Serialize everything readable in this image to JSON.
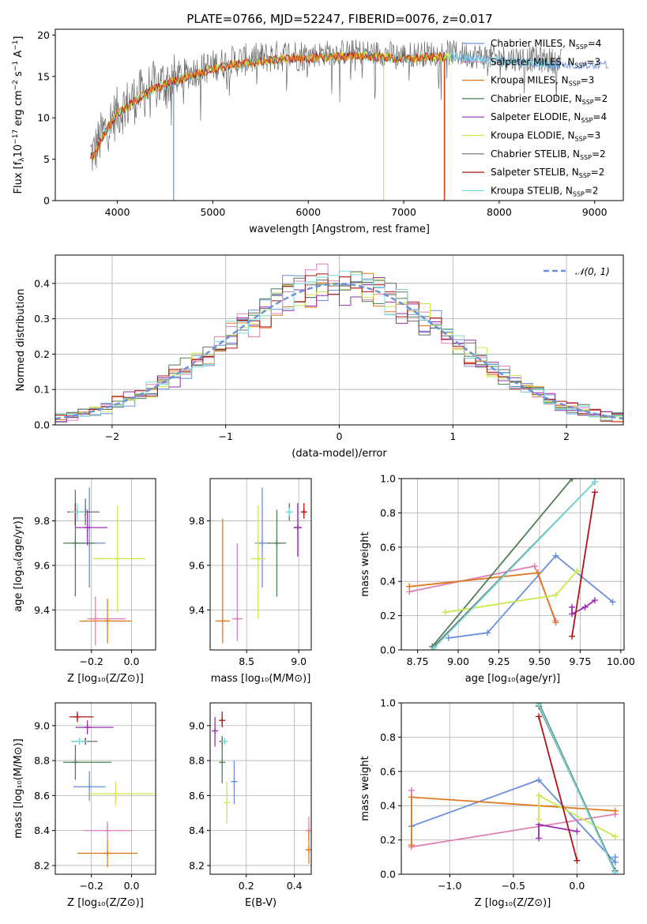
{
  "colors": {
    "Chabrier MILES": "#6a8fdc",
    "Salpeter MILES": "#e07fb3",
    "Kroupa MILES": "#e07a1f",
    "Chabrier ELODIE": "#4f7f55",
    "Salpeter ELODIE": "#9a2fb0",
    "Kroupa ELODIE": "#c9ea4e",
    "Chabrier STELIB": "#6b6b6b",
    "Salpeter STELIB": "#b01414",
    "Kroupa STELIB": "#77dada"
  },
  "chart_data": [
    {
      "id": "spectrum",
      "type": "line",
      "title": "PLATE=0766, MJD=52247, FIBERID=0076, z=0.017",
      "xlabel": "wavelength [Angstrom, rest frame]",
      "ylabel": "Flux [f_λ 10^{-17} erg cm^{-2} s^{-1} A^{-1}]",
      "xlim": [
        3350,
        9300
      ],
      "ylim": [
        0,
        20.7
      ],
      "xticks": [
        4000,
        5000,
        6000,
        7000,
        8000,
        9000
      ],
      "yticks": [
        0,
        5,
        10,
        15,
        20
      ],
      "grid": false,
      "legend_position": "right",
      "legend": [
        {
          "name": "Chabrier MILES",
          "nssp": "4"
        },
        {
          "name": "Salpeter MILES",
          "nssp": "3"
        },
        {
          "name": "Kroupa MILES",
          "nssp": "3"
        },
        {
          "name": "Chabrier ELODIE",
          "nssp": "2"
        },
        {
          "name": "Salpeter ELODIE",
          "nssp": "4"
        },
        {
          "name": "Kroupa ELODIE",
          "nssp": "3"
        },
        {
          "name": "Chabrier STELIB",
          "nssp": "2"
        },
        {
          "name": "Salpeter STELIB",
          "nssp": "2"
        },
        {
          "name": "Kroupa STELIB",
          "nssp": "2"
        }
      ],
      "data_continuum": {
        "x": [
          3750,
          3850,
          4000,
          4200,
          4400,
          4600,
          4800,
          5000,
          5200,
          5500,
          5800,
          6000,
          6200,
          6500,
          6800,
          7000,
          7200,
          7500,
          7800,
          8000,
          8300,
          8600
        ],
        "y": [
          6.0,
          8.5,
          11.0,
          12.8,
          14.2,
          15.0,
          15.8,
          16.5,
          17.0,
          17.4,
          17.8,
          17.7,
          18.0,
          18.1,
          17.9,
          17.7,
          17.9,
          18.0,
          17.6,
          17.4,
          17.3,
          17.0
        ]
      },
      "model_lines": [
        {
          "series": "Chabrier MILES",
          "x0": 3750,
          "x1": 9300
        },
        {
          "series": "Kroupa STELIB",
          "x0": 3720,
          "x1": 9300
        },
        {
          "series": "Kroupa ELODIE",
          "x0": 3720,
          "x1": 7500
        },
        {
          "series": "Salpeter STELIB",
          "x0": 3720,
          "x1": 7430
        },
        {
          "series": "Kroupa MILES",
          "x0": 3720,
          "x1": 7430
        }
      ],
      "sharp_drops": [
        {
          "series": "Chabrier MILES",
          "x": 4590
        },
        {
          "series": "Kroupa ELODIE",
          "x": 6790
        },
        {
          "series": "Salpeter STELIB",
          "x": 7425
        },
        {
          "series": "Kroupa MILES",
          "x": 7430
        }
      ]
    },
    {
      "id": "residuals",
      "type": "histogram",
      "xlabel": "(data-model)/error",
      "ylabel": "Normed distribution",
      "xlim": [
        -2.5,
        2.5
      ],
      "ylim": [
        0,
        0.48
      ],
      "xticks": [
        -2,
        -1,
        0,
        1,
        2
      ],
      "yticks": [
        0.0,
        0.1,
        0.2,
        0.3,
        0.4
      ],
      "grid": true,
      "legend_position": "top-right",
      "legend": [
        "𝒩(0, 1)"
      ],
      "normal_curve": {
        "mu": 0,
        "sigma": 1,
        "color": "#6a8fdc",
        "dash": true
      },
      "bin_width": 0.1
    },
    {
      "id": "age_vs_Z",
      "type": "scatter",
      "xlabel": "Z [log₁₀(Z/Z⊙)]",
      "ylabel": "age [log₁₀(age/yr)]",
      "xlim": [
        -0.38,
        0.12
      ],
      "ylim": [
        9.22,
        9.99
      ],
      "xticks": [
        -0.2,
        0.0
      ],
      "yticks": [
        9.4,
        9.6,
        9.8
      ],
      "grid": true,
      "points": [
        {
          "series": "Chabrier MILES",
          "x": -0.21,
          "y": 9.7,
          "xerr": [
            0.08,
            0.08
          ],
          "yerr": [
            0.2,
            0.25
          ]
        },
        {
          "series": "Salpeter MILES",
          "x": -0.18,
          "y": 9.36,
          "xerr": [
            0.04,
            0.15
          ],
          "yerr": [
            0.12,
            0.1
          ]
        },
        {
          "series": "Kroupa MILES",
          "x": -0.12,
          "y": 9.35,
          "xerr": [
            0.14,
            0.12
          ],
          "yerr": [
            0.1,
            0.1
          ]
        },
        {
          "series": "Chabrier ELODIE",
          "x": -0.28,
          "y": 9.7,
          "xerr": [
            0.06,
            0.1
          ],
          "yerr": [
            0.24,
            0.24
          ]
        },
        {
          "series": "Salpeter ELODIE",
          "x": -0.22,
          "y": 9.77,
          "xerr": [
            0.06,
            0.1
          ],
          "yerr": [
            0.08,
            0.08
          ]
        },
        {
          "series": "Kroupa ELODIE",
          "x": -0.07,
          "y": 9.63,
          "xerr": [
            0.12,
            0.14
          ],
          "yerr": [
            0.24,
            0.24
          ]
        },
        {
          "series": "Chabrier STELIB",
          "x": -0.23,
          "y": 9.84,
          "xerr": [
            0.07,
            0.07
          ],
          "yerr": [
            0.06,
            0.06
          ]
        },
        {
          "series": "Salpeter STELIB",
          "x": -0.28,
          "y": 9.84,
          "xerr": [
            0.04,
            0.04
          ],
          "yerr": [
            0.06,
            0.04
          ]
        },
        {
          "series": "Kroupa STELIB",
          "x": -0.27,
          "y": 9.84,
          "xerr": [
            0.04,
            0.04
          ],
          "yerr": [
            0.04,
            0.04
          ]
        }
      ]
    },
    {
      "id": "age_vs_mass",
      "type": "scatter",
      "xlabel": "mass [log₁₀(M/M⊙)]",
      "ylabel": "",
      "xlim": [
        8.15,
        9.12
      ],
      "ylim": [
        9.22,
        9.99
      ],
      "xticks": [
        8.5,
        9.0
      ],
      "yticks": [
        9.4,
        9.6,
        9.8
      ],
      "grid": true,
      "points": [
        {
          "series": "Chabrier MILES",
          "x": 8.65,
          "y": 9.7,
          "xerr": [
            0.07,
            0.07
          ],
          "yerr": [
            0.2,
            0.25
          ]
        },
        {
          "series": "Salpeter MILES",
          "x": 8.41,
          "y": 9.36,
          "xerr": [
            0.05,
            0.05
          ],
          "yerr": [
            0.1,
            0.34
          ]
        },
        {
          "series": "Kroupa MILES",
          "x": 8.27,
          "y": 9.35,
          "xerr": [
            0.07,
            0.07
          ],
          "yerr": [
            0.1,
            0.46
          ]
        },
        {
          "series": "Chabrier ELODIE",
          "x": 8.79,
          "y": 9.7,
          "xerr": [
            0.09,
            0.09
          ],
          "yerr": [
            0.24,
            0.15
          ]
        },
        {
          "series": "Salpeter ELODIE",
          "x": 8.99,
          "y": 9.77,
          "xerr": [
            0.04,
            0.04
          ],
          "yerr": [
            0.13,
            0.11
          ]
        },
        {
          "series": "Kroupa ELODIE",
          "x": 8.61,
          "y": 9.63,
          "xerr": [
            0.07,
            0.07
          ],
          "yerr": [
            0.27,
            0.24
          ]
        },
        {
          "series": "Chabrier STELIB",
          "x": 8.91,
          "y": 9.84,
          "xerr": [
            0.02,
            0.02
          ],
          "yerr": [
            0.04,
            0.04
          ]
        },
        {
          "series": "Salpeter STELIB",
          "x": 9.05,
          "y": 9.84,
          "xerr": [
            0.02,
            0.02
          ],
          "yerr": [
            0.03,
            0.04
          ]
        },
        {
          "series": "Kroupa STELIB",
          "x": 8.91,
          "y": 9.84,
          "xerr": [
            0.02,
            0.02
          ],
          "yerr": [
            0.02,
            0.02
          ]
        }
      ]
    },
    {
      "id": "weight_vs_age",
      "type": "line",
      "xlabel": "age [log₁₀(age/yr)]",
      "ylabel": "mass weight",
      "xlim": [
        8.65,
        10.02
      ],
      "ylim": [
        0,
        1.0
      ],
      "xticks": [
        8.75,
        9.0,
        9.25,
        9.5,
        9.75,
        10.0
      ],
      "yticks": [
        0.0,
        0.2,
        0.4,
        0.6,
        0.8,
        1.0
      ],
      "grid": true,
      "series": [
        {
          "name": "Chabrier MILES",
          "x": [
            8.94,
            9.18,
            9.6,
            9.95
          ],
          "y": [
            0.07,
            0.1,
            0.55,
            0.28
          ]
        },
        {
          "name": "Salpeter MILES",
          "x": [
            8.7,
            9.47,
            9.6
          ],
          "y": [
            0.34,
            0.49,
            0.17
          ]
        },
        {
          "name": "Kroupa MILES",
          "x": [
            8.7,
            9.49,
            9.6
          ],
          "y": [
            0.37,
            0.45,
            0.16
          ]
        },
        {
          "name": "Chabrier ELODIE",
          "x": [
            8.84,
            9.7
          ],
          "y": [
            0.02,
            1.0
          ]
        },
        {
          "name": "Salpeter ELODIE",
          "x": [
            9.7,
            9.7,
            9.78,
            9.84
          ],
          "y": [
            0.25,
            0.21,
            0.25,
            0.29
          ]
        },
        {
          "name": "Kroupa ELODIE",
          "x": [
            8.92,
            9.6,
            9.73
          ],
          "y": [
            0.22,
            0.32,
            0.46
          ]
        },
        {
          "name": "Chabrier STELIB",
          "x": [
            8.85,
            9.84
          ],
          "y": [
            0.02,
            0.98
          ]
        },
        {
          "name": "Salpeter STELIB",
          "x": [
            9.7,
            9.84
          ],
          "y": [
            0.08,
            0.92
          ]
        },
        {
          "name": "Kroupa STELIB",
          "x": [
            8.85,
            9.84
          ],
          "y": [
            0.01,
            0.98
          ]
        }
      ]
    },
    {
      "id": "mass_vs_Z",
      "type": "scatter",
      "xlabel": "Z [log₁₀(Z/Z⊙)]",
      "ylabel": "mass [log₁₀(M/M⊙)]",
      "xlim": [
        -0.38,
        0.12
      ],
      "ylim": [
        8.15,
        9.13
      ],
      "xticks": [
        -0.2,
        0.0
      ],
      "yticks": [
        8.2,
        8.4,
        8.6,
        8.8,
        9.0
      ],
      "grid": true,
      "points": [
        {
          "series": "Chabrier MILES",
          "x": -0.21,
          "y": 8.65,
          "xerr": [
            0.08,
            0.08
          ],
          "yerr": [
            0.08,
            0.09
          ]
        },
        {
          "series": "Salpeter MILES",
          "x": -0.12,
          "y": 8.4,
          "xerr": [
            0.12,
            0.12
          ],
          "yerr": [
            0.05,
            0.05
          ]
        },
        {
          "series": "Kroupa MILES",
          "x": -0.12,
          "y": 8.27,
          "xerr": [
            0.15,
            0.15
          ],
          "yerr": [
            0.08,
            0.08
          ]
        },
        {
          "series": "Chabrier ELODIE",
          "x": -0.28,
          "y": 8.79,
          "xerr": [
            0.06,
            0.18
          ],
          "yerr": [
            0.1,
            0.1
          ]
        },
        {
          "series": "Salpeter ELODIE",
          "x": -0.22,
          "y": 8.99,
          "xerr": [
            0.06,
            0.13
          ],
          "yerr": [
            0.04,
            0.04
          ]
        },
        {
          "series": "Kroupa ELODIE",
          "x": -0.08,
          "y": 8.61,
          "xerr": [
            0.14,
            0.19
          ],
          "yerr": [
            0.07,
            0.07
          ]
        },
        {
          "series": "Chabrier STELIB",
          "x": -0.23,
          "y": 8.91,
          "xerr": [
            0.07,
            0.06
          ],
          "yerr": [
            0.02,
            0.02
          ]
        },
        {
          "series": "Salpeter STELIB",
          "x": -0.27,
          "y": 9.05,
          "xerr": [
            0.04,
            0.08
          ],
          "yerr": [
            0.03,
            0.03
          ]
        },
        {
          "series": "Kroupa STELIB",
          "x": -0.26,
          "y": 8.91,
          "xerr": [
            0.04,
            0.04
          ],
          "yerr": [
            0.02,
            0.02
          ]
        }
      ]
    },
    {
      "id": "mass_vs_EBV",
      "type": "scatter",
      "xlabel": "E(B-V)",
      "ylabel": "",
      "xlim": [
        0.05,
        0.47
      ],
      "ylim": [
        8.15,
        9.13
      ],
      "xticks": [
        0.2,
        0.4
      ],
      "yticks": [
        8.2,
        8.4,
        8.6,
        8.8,
        9.0
      ],
      "grid": true,
      "points": [
        {
          "series": "Chabrier MILES",
          "x": 0.15,
          "y": 8.68,
          "xerr": [
            0,
            0
          ],
          "yerr": [
            0.13,
            0.12
          ]
        },
        {
          "series": "Salpeter MILES",
          "x": 0.46,
          "y": 8.4,
          "xerr": [
            0,
            0
          ],
          "yerr": [
            0.05,
            0.08
          ]
        },
        {
          "series": "Kroupa MILES",
          "x": 0.46,
          "y": 8.29,
          "xerr": [
            0,
            0
          ],
          "yerr": [
            0.08,
            0.11
          ]
        },
        {
          "series": "Chabrier ELODIE",
          "x": 0.1,
          "y": 8.79,
          "xerr": [
            0,
            0
          ],
          "yerr": [
            0.12,
            0.12
          ]
        },
        {
          "series": "Salpeter ELODIE",
          "x": 0.07,
          "y": 8.97,
          "xerr": [
            0,
            0
          ],
          "yerr": [
            0.09,
            0.08
          ]
        },
        {
          "series": "Kroupa ELODIE",
          "x": 0.12,
          "y": 8.56,
          "xerr": [
            0,
            0
          ],
          "yerr": [
            0.12,
            0.12
          ]
        },
        {
          "series": "Chabrier STELIB",
          "x": 0.1,
          "y": 8.91,
          "xerr": [
            0,
            0
          ],
          "yerr": [
            0.03,
            0.03
          ]
        },
        {
          "series": "Salpeter STELIB",
          "x": 0.1,
          "y": 9.03,
          "xerr": [
            0,
            0
          ],
          "yerr": [
            0.04,
            0.05
          ]
        },
        {
          "series": "Kroupa STELIB",
          "x": 0.11,
          "y": 8.91,
          "xerr": [
            0,
            0
          ],
          "yerr": [
            0.02,
            0.02
          ]
        }
      ]
    },
    {
      "id": "weight_vs_Z",
      "type": "line",
      "xlabel": "Z [log₁₀(Z/Z⊙)]",
      "ylabel": "mass weight",
      "xlim": [
        -1.38,
        0.37
      ],
      "ylim": [
        0,
        1.0
      ],
      "xticks": [
        -1.0,
        -0.5,
        0.0
      ],
      "yticks": [
        0.0,
        0.2,
        0.4,
        0.6,
        0.8,
        1.0
      ],
      "grid": true,
      "series": [
        {
          "name": "Chabrier MILES",
          "x": [
            -1.3,
            -0.3,
            0.3,
            0.3
          ],
          "y": [
            0.28,
            0.55,
            0.07,
            0.1
          ]
        },
        {
          "name": "Salpeter MILES",
          "x": [
            -1.3,
            -1.3,
            0.3
          ],
          "y": [
            0.49,
            0.16,
            0.35
          ]
        },
        {
          "name": "Kroupa MILES",
          "x": [
            -1.3,
            -1.3,
            0.3
          ],
          "y": [
            0.17,
            0.45,
            0.37
          ]
        },
        {
          "name": "Chabrier ELODIE",
          "x": [
            -0.3,
            0.3
          ],
          "y": [
            1.0,
            0.02
          ]
        },
        {
          "name": "Salpeter ELODIE",
          "x": [
            -0.3,
            -0.3,
            0.0
          ],
          "y": [
            0.21,
            0.29,
            0.25
          ]
        },
        {
          "name": "Kroupa ELODIE",
          "x": [
            -0.3,
            -0.3,
            0.3
          ],
          "y": [
            0.32,
            0.46,
            0.22
          ]
        },
        {
          "name": "Chabrier STELIB",
          "x": [
            -0.3,
            0.3
          ],
          "y": [
            0.98,
            0.02
          ]
        },
        {
          "name": "Salpeter STELIB",
          "x": [
            -0.3,
            0.0
          ],
          "y": [
            0.92,
            0.08
          ]
        },
        {
          "name": "Kroupa STELIB",
          "x": [
            -0.3,
            0.3
          ],
          "y": [
            0.99,
            0.01
          ]
        }
      ]
    }
  ]
}
